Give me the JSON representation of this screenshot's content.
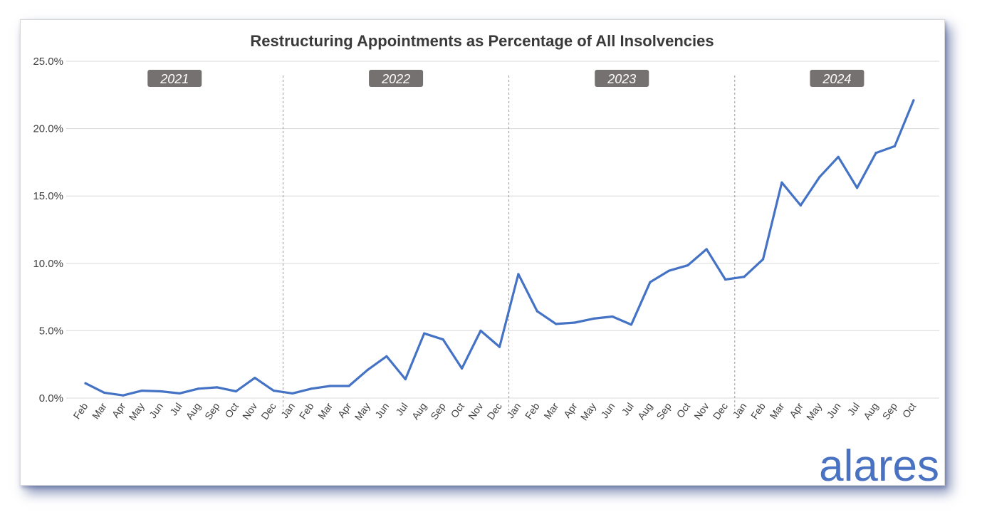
{
  "chart_data": {
    "type": "line",
    "title": "Restructuring Appointments as Percentage of All Insolvencies",
    "xlabel": "",
    "ylabel": "",
    "ylim": [
      0,
      25
    ],
    "y_tick_labels": [
      "0.0%",
      "5.0%",
      "10.0%",
      "15.0%",
      "20.0%",
      "25.0%"
    ],
    "y_ticks": [
      0,
      5,
      10,
      15,
      20,
      25
    ],
    "grid": true,
    "categories": [
      "Feb",
      "Mar",
      "Apr",
      "May",
      "Jun",
      "Jul",
      "Aug",
      "Sep",
      "Oct",
      "Nov",
      "Dec",
      "Jan",
      "Feb",
      "Mar",
      "Apr",
      "May",
      "Jun",
      "Jul",
      "Aug",
      "Sep",
      "Oct",
      "Nov",
      "Dec",
      "Jan",
      "Feb",
      "Mar",
      "Apr",
      "May",
      "Jun",
      "Jul",
      "Aug",
      "Sep",
      "Oct",
      "Nov",
      "Dec",
      "Jan",
      "Feb",
      "Mar",
      "Apr",
      "May",
      "Jun",
      "Jul",
      "Aug",
      "Sep",
      "Oct"
    ],
    "series": [
      {
        "color": "#4472c4",
        "values": [
          1.1,
          0.4,
          0.2,
          0.55,
          0.5,
          0.35,
          0.7,
          0.8,
          0.5,
          1.5,
          0.55,
          0.35,
          0.7,
          0.9,
          0.9,
          2.1,
          3.1,
          1.4,
          4.8,
          4.35,
          2.2,
          5.0,
          3.8,
          9.2,
          6.45,
          5.5,
          5.6,
          5.9,
          6.05,
          5.45,
          8.6,
          9.45,
          9.85,
          11.05,
          8.8,
          9.0,
          10.3,
          16.0,
          14.3,
          16.4,
          17.9,
          15.6,
          18.2,
          18.7,
          22.1
        ]
      }
    ],
    "year_bands": [
      {
        "label": "2021",
        "start_index": 0,
        "end_index": 10
      },
      {
        "label": "2022",
        "start_index": 11,
        "end_index": 22
      },
      {
        "label": "2023",
        "start_index": 23,
        "end_index": 34
      },
      {
        "label": "2024",
        "start_index": 35,
        "end_index": 44
      }
    ],
    "year_label_color": "#767171"
  },
  "logo": {
    "text": "alares",
    "color": "#4a72c2"
  }
}
